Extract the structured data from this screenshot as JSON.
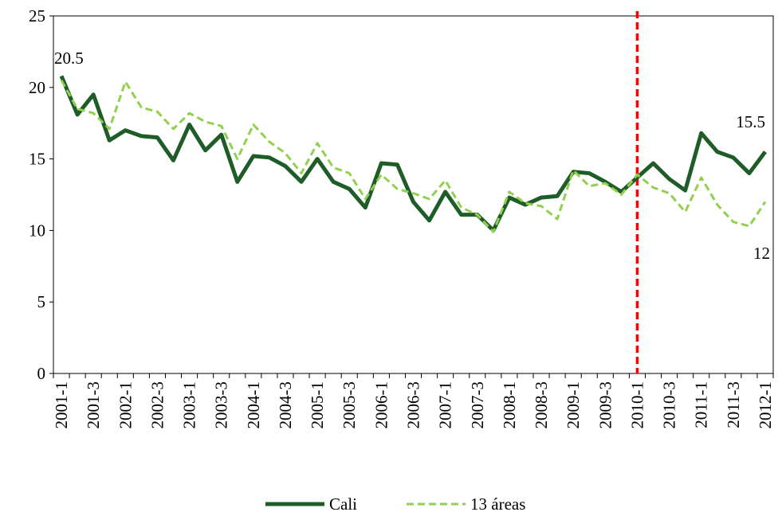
{
  "chart_data": {
    "type": "line",
    "categories": [
      "2001-1",
      null,
      "2001-3",
      null,
      "2002-1",
      null,
      "2002-3",
      null,
      "2003-1",
      null,
      "2003-3",
      null,
      "2004-1",
      null,
      "2004-3",
      null,
      "2005-1",
      null,
      "2005-3",
      null,
      "2006-1",
      null,
      "2006-3",
      null,
      "2007-1",
      null,
      "2007-3",
      null,
      "2008-1",
      null,
      "2008-3",
      null,
      "2009-1",
      null,
      "2009-3",
      null,
      "2010-1",
      null,
      "2010-3",
      null,
      "2011-1",
      null,
      "2011-3",
      null,
      "2012-1"
    ],
    "series": [
      {
        "name": "Cali",
        "color": "#1e5c28",
        "dashed": false,
        "values": [
          20.8,
          18.1,
          19.5,
          16.3,
          17.0,
          16.6,
          16.5,
          14.9,
          17.4,
          15.6,
          16.7,
          13.4,
          15.2,
          15.1,
          14.5,
          13.4,
          15.0,
          13.4,
          12.9,
          11.6,
          14.7,
          14.6,
          12.0,
          10.7,
          12.7,
          11.1,
          11.1,
          10.0,
          12.3,
          11.8,
          12.3,
          12.4,
          14.1,
          14.0,
          13.4,
          12.7,
          13.7,
          14.7,
          13.6,
          12.8,
          16.8,
          15.5,
          15.1,
          14.0,
          15.5
        ]
      },
      {
        "name": "13 áreas",
        "color": "#92d050",
        "dashed": true,
        "values": [
          20.5,
          18.5,
          18.2,
          17.1,
          20.4,
          18.6,
          18.3,
          17.1,
          18.2,
          17.6,
          17.3,
          15.0,
          17.4,
          16.2,
          15.4,
          14.0,
          16.1,
          14.4,
          14.0,
          12.2,
          13.9,
          12.9,
          12.6,
          12.2,
          13.5,
          11.6,
          11.1,
          9.9,
          12.7,
          11.9,
          11.7,
          10.8,
          14.2,
          13.1,
          13.3,
          12.5,
          13.9,
          13.0,
          12.6,
          11.3,
          13.7,
          11.8,
          10.6,
          10.3,
          12.0
        ]
      }
    ],
    "annotations": [
      "20.5",
      "15.5",
      "12"
    ],
    "marker_line": {
      "category_index": 36,
      "color": "#ff0000"
    },
    "ylim": [
      0,
      25
    ],
    "yticks": [
      0,
      5,
      10,
      15,
      20,
      25
    ],
    "grid": false,
    "legend": "bottom"
  }
}
